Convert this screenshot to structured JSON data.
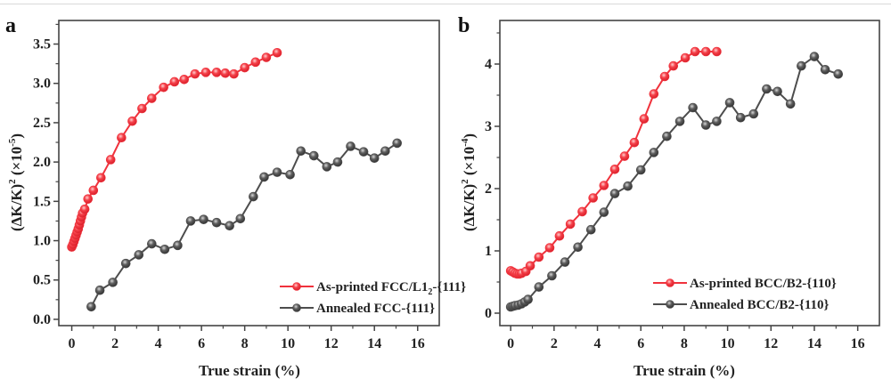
{
  "chart_data": [
    {
      "type": "line",
      "panel_label": "a",
      "xlabel": "True strain (%)",
      "ylabel_prefix": "(ΔK/K)",
      "ylabel_power": "2",
      "ylabel_scale": "(×10",
      "ylabel_scale_exp": "-5",
      "ylabel_scale_close": ")",
      "xlim": [
        -0.6,
        17
      ],
      "ylim": [
        -0.08,
        3.8
      ],
      "xticks": [
        0,
        2,
        4,
        6,
        8,
        10,
        12,
        14,
        16
      ],
      "xtick_labels": [
        "0",
        "2",
        "4",
        "6",
        "8",
        "10",
        "12",
        "14",
        "16"
      ],
      "yticks": [
        0.0,
        0.5,
        1.0,
        1.5,
        2.0,
        2.5,
        3.0,
        3.5
      ],
      "ytick_labels": [
        "0.0",
        "0.5",
        "1.0",
        "1.5",
        "2.0",
        "2.5",
        "3.0",
        "3.5"
      ],
      "grid": false,
      "legend_position": "bottom-right",
      "series": [
        {
          "name": "As-printed FCC/L1",
          "name_sub": "2",
          "name_suffix": "-{111}",
          "color": "#f0323c",
          "x": [
            0.0,
            0.05,
            0.1,
            0.15,
            0.2,
            0.25,
            0.3,
            0.35,
            0.4,
            0.45,
            0.5,
            0.6,
            0.75,
            1.0,
            1.35,
            1.8,
            2.3,
            2.8,
            3.25,
            3.7,
            4.25,
            4.75,
            5.2,
            5.7,
            6.2,
            6.7,
            7.1,
            7.5,
            8.0,
            8.5,
            9.0,
            9.5
          ],
          "y": [
            0.92,
            0.95,
            0.99,
            1.03,
            1.07,
            1.11,
            1.15,
            1.2,
            1.25,
            1.3,
            1.35,
            1.4,
            1.53,
            1.64,
            1.8,
            2.03,
            2.31,
            2.52,
            2.68,
            2.81,
            2.95,
            3.02,
            3.05,
            3.12,
            3.14,
            3.14,
            3.13,
            3.12,
            3.2,
            3.27,
            3.33,
            3.39
          ]
        },
        {
          "name": "Annealed FCC-{111}",
          "name_sub": "",
          "name_suffix": "",
          "color": "#4d4d4d",
          "x": [
            0.9,
            1.3,
            1.9,
            2.5,
            3.1,
            3.7,
            4.3,
            4.9,
            5.5,
            6.1,
            6.7,
            7.3,
            7.8,
            8.4,
            8.9,
            9.5,
            10.1,
            10.6,
            11.2,
            11.8,
            12.3,
            12.9,
            13.5,
            14.0,
            14.5,
            15.05
          ],
          "y": [
            0.16,
            0.37,
            0.47,
            0.71,
            0.82,
            0.96,
            0.89,
            0.94,
            1.25,
            1.27,
            1.23,
            1.19,
            1.28,
            1.56,
            1.81,
            1.87,
            1.84,
            2.14,
            2.08,
            1.94,
            2.0,
            2.2,
            2.13,
            2.05,
            2.14,
            2.24
          ]
        }
      ]
    },
    {
      "type": "line",
      "panel_label": "b",
      "xlabel": "True strain (%)",
      "ylabel_prefix": "(ΔK/K)",
      "ylabel_power": "2",
      "ylabel_scale": "(×10",
      "ylabel_scale_exp": "-4",
      "ylabel_scale_close": ")",
      "xlim": [
        -0.5,
        17
      ],
      "ylim": [
        -0.2,
        4.7
      ],
      "xticks": [
        0,
        2,
        4,
        6,
        8,
        10,
        12,
        14,
        16
      ],
      "xtick_labels": [
        "0",
        "2",
        "4",
        "6",
        "8",
        "10",
        "12",
        "14",
        "16"
      ],
      "yticks": [
        0,
        1,
        2,
        3,
        4
      ],
      "ytick_labels": [
        "0",
        "1",
        "2",
        "3",
        "4"
      ],
      "grid": false,
      "legend_position": "bottom-right",
      "series": [
        {
          "name": "As-printed BCC/B2-{110}",
          "name_sub": "",
          "name_suffix": "",
          "color": "#f0323c",
          "x": [
            0.0,
            0.1,
            0.2,
            0.3,
            0.4,
            0.5,
            0.7,
            0.9,
            1.3,
            1.8,
            2.25,
            2.75,
            3.3,
            3.8,
            4.3,
            4.8,
            5.25,
            5.7,
            6.15,
            6.6,
            7.1,
            7.5,
            8.05,
            8.5,
            9.0,
            9.5
          ],
          "y": [
            0.68,
            0.66,
            0.64,
            0.63,
            0.63,
            0.64,
            0.67,
            0.76,
            0.9,
            1.05,
            1.24,
            1.43,
            1.63,
            1.85,
            2.05,
            2.31,
            2.52,
            2.74,
            3.12,
            3.52,
            3.8,
            3.97,
            4.1,
            4.2,
            4.2,
            4.2
          ]
        },
        {
          "name": "Annealed BCC/B2-{110}",
          "name_sub": "",
          "name_suffix": "",
          "color": "#4d4d4d",
          "x": [
            0.0,
            0.1,
            0.2,
            0.35,
            0.5,
            0.65,
            0.8,
            1.3,
            1.9,
            2.5,
            3.1,
            3.7,
            4.3,
            4.8,
            5.4,
            6.0,
            6.6,
            7.2,
            7.8,
            8.4,
            9.0,
            9.5,
            10.1,
            10.6,
            11.2,
            11.8,
            12.3,
            12.9,
            13.4,
            14.0,
            14.5,
            15.1
          ],
          "y": [
            0.1,
            0.11,
            0.12,
            0.13,
            0.15,
            0.18,
            0.22,
            0.42,
            0.6,
            0.82,
            1.06,
            1.34,
            1.62,
            1.92,
            2.04,
            2.3,
            2.58,
            2.84,
            3.08,
            3.3,
            3.02,
            3.08,
            3.38,
            3.14,
            3.2,
            3.6,
            3.56,
            3.36,
            3.97,
            4.12,
            3.91,
            3.84
          ]
        }
      ]
    }
  ]
}
